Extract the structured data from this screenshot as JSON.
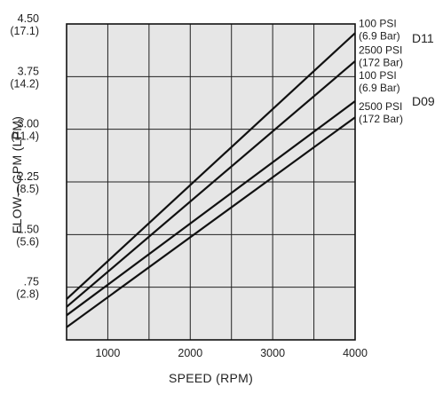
{
  "chart_data": {
    "type": "line",
    "xlabel": "SPEED (RPM)",
    "ylabel": "FLOW—GPM (LPM)",
    "xlim": [
      500,
      4000
    ],
    "ylim": [
      0,
      4.5
    ],
    "grid": true,
    "x_ticks": [
      {
        "value": 1000,
        "label": "1000"
      },
      {
        "value": 2000,
        "label": "2000"
      },
      {
        "value": 3000,
        "label": "3000"
      },
      {
        "value": 4000,
        "label": "4000"
      }
    ],
    "x_grid": [
      1000,
      1500,
      2000,
      2500,
      3000,
      3500
    ],
    "y_grid": [
      0.75,
      1.5,
      2.25,
      3.0,
      3.75
    ],
    "y_ticks": [
      {
        "value": 4.5,
        "label": "4.50",
        "sublabel": "(17.1)"
      },
      {
        "value": 3.75,
        "label": "3.75",
        "sublabel": "(14.2)"
      },
      {
        "value": 3.0,
        "label": "3.00",
        "sublabel": "(11.4)"
      },
      {
        "value": 2.25,
        "label": "2.25",
        "sublabel": "(8.5)"
      },
      {
        "value": 1.5,
        "label": "1.50",
        "sublabel": "(5.6)"
      },
      {
        "value": 0.75,
        "label": ".75",
        "sublabel": "(2.8)"
      }
    ],
    "groups": [
      {
        "label": "D11",
        "y_at": 4.3
      },
      {
        "label": "D09",
        "y_at": 3.4
      }
    ],
    "series": [
      {
        "name_line1": "100 PSI",
        "name_line2": "(6.9 Bar)",
        "label_y": 4.43,
        "x": [
          500,
          4000
        ],
        "y": [
          0.58,
          4.37
        ]
      },
      {
        "name_line1": "2500 PSI",
        "name_line2": "(172 Bar)",
        "label_y": 4.05,
        "x": [
          500,
          4000
        ],
        "y": [
          0.47,
          3.97
        ]
      },
      {
        "name_line1": "100 PSI",
        "name_line2": "(6.9 Bar)",
        "label_y": 3.69,
        "x": [
          500,
          4000
        ],
        "y": [
          0.35,
          3.4
        ]
      },
      {
        "name_line1": "2500 PSI",
        "name_line2": "(172 Bar)",
        "label_y": 3.25,
        "x": [
          500,
          4000
        ],
        "y": [
          0.18,
          3.17
        ]
      }
    ]
  }
}
